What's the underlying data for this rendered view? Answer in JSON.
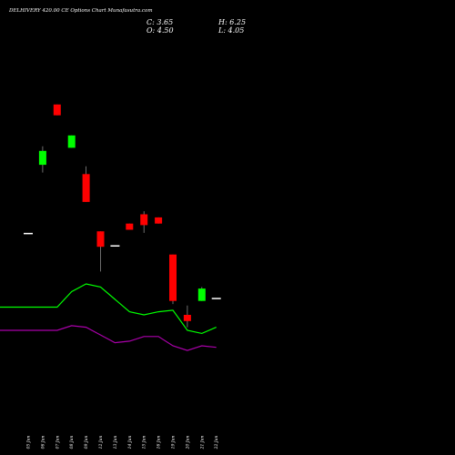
{
  "header": {
    "title": "DELHIVERY 420.00 CE Options Chart Munafasutra.com",
    "close": "C: 3.65",
    "open": "O: 4.50",
    "high": "H: 6.25",
    "low": "L: 4.05"
  },
  "chart_data": {
    "type": "candlestick",
    "title": "DELHIVERY 420.00 CE Options Chart Munafasutra.com",
    "categories": [
      "05 Jun",
      "06 Jun",
      "07 Jun",
      "08 Jun",
      "09 Jun",
      "12 Jun",
      "13 Jun",
      "14 Jun",
      "15 Jun",
      "16 Jun",
      "19 Jun",
      "20 Jun",
      "21 Jun",
      "22 Jun"
    ],
    "candles": [
      {
        "date": "05 Jun",
        "open": 12.3,
        "high": 12.3,
        "low": 12.3,
        "close": 12.3,
        "color": "#ffffff"
      },
      {
        "date": "06 Jun",
        "open": 16.7,
        "high": 17.9,
        "low": 16.2,
        "close": 17.6,
        "color": "#00ff00"
      },
      {
        "date": "07 Jun",
        "open": 20.6,
        "high": 20.6,
        "low": 19.9,
        "close": 19.9,
        "color": "#ff0000"
      },
      {
        "date": "08 Jun",
        "open": 17.8,
        "high": 18.6,
        "low": 17.8,
        "close": 18.6,
        "color": "#00ff00"
      },
      {
        "date": "09 Jun",
        "open": 16.1,
        "high": 16.6,
        "low": 14.3,
        "close": 14.3,
        "color": "#ff0000"
      },
      {
        "date": "12 Jun",
        "open": 12.4,
        "high": 12.4,
        "low": 9.8,
        "close": 11.4,
        "color": "#ff0000"
      },
      {
        "date": "13 Jun",
        "open": 11.5,
        "high": 11.5,
        "low": 11.5,
        "close": 11.5,
        "color": "#ffffff"
      },
      {
        "date": "14 Jun",
        "open": 12.9,
        "high": 12.9,
        "low": 12.5,
        "close": 12.5,
        "color": "#ff0000"
      },
      {
        "date": "15 Jun",
        "open": 13.5,
        "high": 13.7,
        "low": 12.3,
        "close": 12.8,
        "color": "#ff0000"
      },
      {
        "date": "16 Jun",
        "open": 13.3,
        "high": 13.3,
        "low": 12.9,
        "close": 12.9,
        "color": "#ff0000"
      },
      {
        "date": "19 Jun",
        "open": 10.9,
        "high": 10.9,
        "low": 7.7,
        "close": 7.9,
        "color": "#ff0000"
      },
      {
        "date": "20 Jun",
        "open": 7.0,
        "high": 7.6,
        "low": 6.2,
        "close": 6.6,
        "color": "#ff0000"
      },
      {
        "date": "21 Jun",
        "open": 7.9,
        "high": 8.8,
        "low": 7.9,
        "close": 8.7,
        "color": "#00ff00"
      },
      {
        "date": "22 Jun",
        "open": 8.1,
        "high": 8.1,
        "low": 8.1,
        "close": 8.1,
        "color": "#ffffff"
      }
    ],
    "lines": [
      {
        "color": "#00ff00",
        "values": [
          null,
          7.5,
          7.5,
          8.5,
          9.0,
          8.8,
          8.0,
          7.2,
          7.0,
          7.2,
          7.3,
          6.0,
          5.8,
          6.2
        ]
      },
      {
        "color": "#aa00aa",
        "values": [
          null,
          6.0,
          6.0,
          6.3,
          6.2,
          5.7,
          5.2,
          5.3,
          5.6,
          5.6,
          5.0,
          4.7,
          5.0,
          4.9
        ]
      }
    ],
    "ylim": [
      0,
      25
    ]
  }
}
